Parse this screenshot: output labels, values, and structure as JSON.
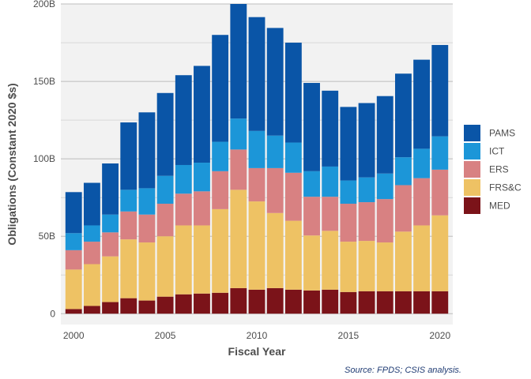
{
  "chart_data": {
    "type": "bar",
    "stacked": true,
    "xlabel": "Fiscal Year",
    "ylabel": "Obligations (Constant 2020 $s)",
    "caption": "Source: FPDS; CSIS analysis.",
    "x": [
      2000,
      2001,
      2002,
      2003,
      2004,
      2005,
      2006,
      2007,
      2008,
      2009,
      2010,
      2011,
      2012,
      2013,
      2014,
      2015,
      2016,
      2017,
      2018,
      2019,
      2020
    ],
    "x_ticks": [
      2000,
      2005,
      2010,
      2015,
      2020
    ],
    "y_ticks": [
      0,
      50,
      100,
      150,
      200
    ],
    "y_tick_labels": [
      "0",
      "50B",
      "100B",
      "150B",
      "200B"
    ],
    "ylim": [
      -7,
      200
    ],
    "grid": true,
    "legend_position": "right",
    "series": [
      {
        "name": "MED",
        "color": "#7b1319",
        "values": [
          3,
          5,
          7.5,
          10,
          8.5,
          11,
          12.5,
          13,
          13.5,
          16.5,
          15.5,
          16.5,
          15.5,
          15,
          15.5,
          14,
          14.5,
          14.5,
          14.5,
          14.5,
          14.5
        ]
      },
      {
        "name": "FRS&C",
        "color": "#eec264",
        "values": [
          25.5,
          27,
          29.5,
          38,
          37.5,
          39,
          44.5,
          44,
          54,
          63.5,
          57,
          48.5,
          44.5,
          35.5,
          38,
          32.5,
          32.5,
          31.5,
          38.5,
          42.5,
          49
        ]
      },
      {
        "name": "ERS",
        "color": "#d88182",
        "values": [
          12.5,
          14.5,
          15.5,
          18,
          18,
          21,
          20.5,
          22,
          24.5,
          26,
          21.5,
          29,
          31,
          25,
          22,
          24.5,
          25,
          28,
          30,
          30.5,
          29.5
        ]
      },
      {
        "name": "ICT",
        "color": "#1c96d8",
        "values": [
          11,
          10.5,
          11.5,
          14,
          17,
          18,
          18.5,
          18.5,
          19,
          20,
          24,
          21,
          19.5,
          16.5,
          19.5,
          15,
          16,
          16.5,
          18,
          19,
          21.5
        ]
      },
      {
        "name": "PAMS",
        "color": "#0a55a7",
        "values": [
          26.5,
          27.5,
          33,
          43.5,
          49,
          53.5,
          58,
          62.5,
          69,
          74,
          73.5,
          69.5,
          64.5,
          57,
          49,
          47.5,
          48,
          50,
          54,
          57.5,
          59
        ]
      }
    ]
  }
}
